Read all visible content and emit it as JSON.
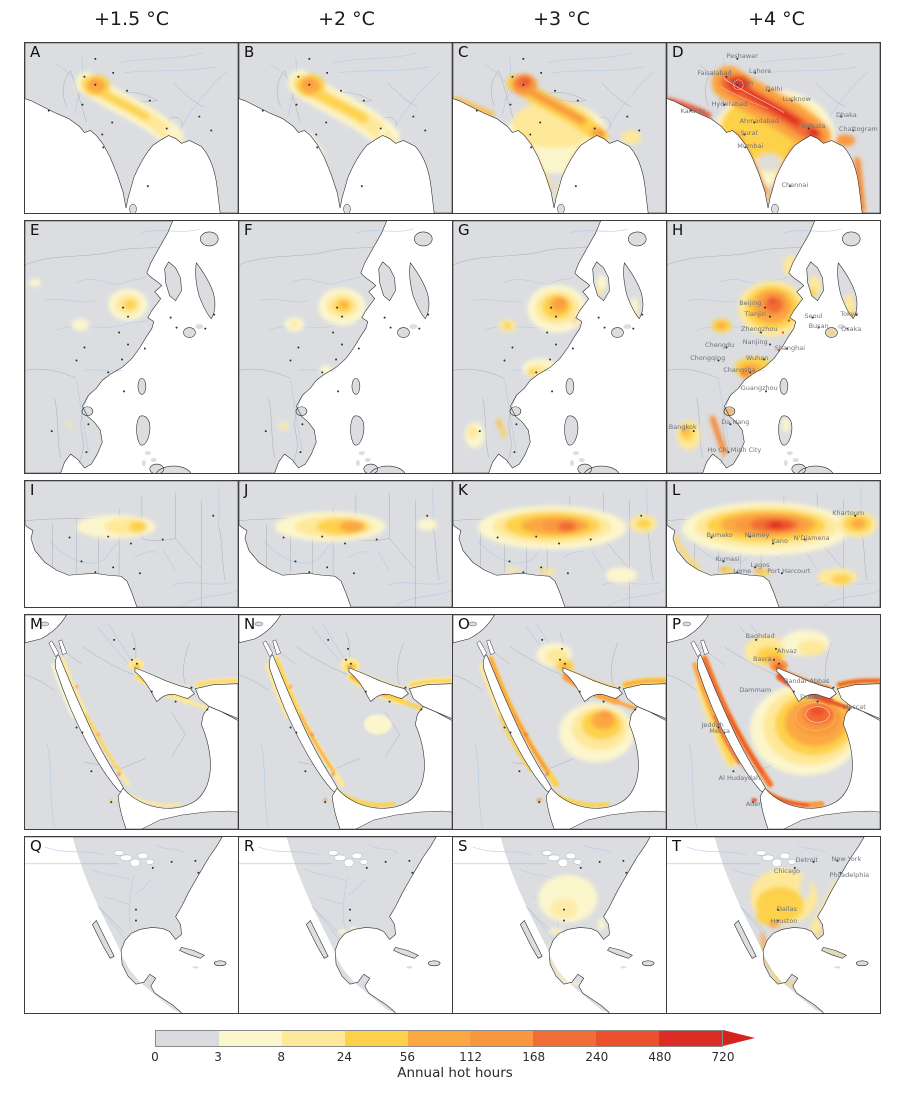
{
  "figure": {
    "column_titles": [
      "+1.5 °C",
      "+2 °C",
      "+3 °C",
      "+4 °C"
    ],
    "rows": [
      {
        "panels": [
          {
            "letter": "A"
          },
          {
            "letter": "B"
          },
          {
            "letter": "C"
          },
          {
            "letter": "D",
            "cities": [
              {
                "name": "Peshawar",
                "x": 35.3,
                "y": 7.6
              },
              {
                "name": "Faisalabad",
                "x": 22.3,
                "y": 17.5
              },
              {
                "name": "Lahore",
                "x": 43.7,
                "y": 16.4
              },
              {
                "name": "Multan",
                "x": 35.3,
                "y": 23.4
              },
              {
                "name": "Delhi",
                "x": 50.2,
                "y": 26.9
              },
              {
                "name": "Lucknow",
                "x": 60.9,
                "y": 32.7
              },
              {
                "name": "Karachi",
                "x": 12.1,
                "y": 39.8
              },
              {
                "name": "Hyderabad",
                "x": 29.3,
                "y": 35.7
              },
              {
                "name": "Ahmadabad",
                "x": 43.3,
                "y": 45.6
              },
              {
                "name": "Surat",
                "x": 38.6,
                "y": 53.2
              },
              {
                "name": "Mumbai",
                "x": 39.1,
                "y": 60.8
              },
              {
                "name": "Kolkata",
                "x": 68.8,
                "y": 49.1
              },
              {
                "name": "Dhaka",
                "x": 84.2,
                "y": 42.1
              },
              {
                "name": "Chattogram",
                "x": 89.8,
                "y": 50.3
              },
              {
                "name": "Chennai",
                "x": 60.0,
                "y": 83.6
              }
            ]
          }
        ]
      },
      {
        "panels": [
          {
            "letter": "E"
          },
          {
            "letter": "F"
          },
          {
            "letter": "G"
          },
          {
            "letter": "H",
            "cities": [
              {
                "name": "Beijing",
                "x": 39.1,
                "y": 32.4
              },
              {
                "name": "Tianjin",
                "x": 41.4,
                "y": 36.8
              },
              {
                "name": "Zhengzhou",
                "x": 43.3,
                "y": 42.7
              },
              {
                "name": "Chengdu",
                "x": 24.7,
                "y": 49.4
              },
              {
                "name": "Nanjing",
                "x": 41.4,
                "y": 48.2
              },
              {
                "name": "Shanghai",
                "x": 57.7,
                "y": 50.2
              },
              {
                "name": "Chongqing",
                "x": 19.1,
                "y": 54.5
              },
              {
                "name": "Wuhan",
                "x": 42.3,
                "y": 54.2
              },
              {
                "name": "Changsha",
                "x": 34.0,
                "y": 59.3
              },
              {
                "name": "Guangzhou",
                "x": 43.3,
                "y": 66.4
              },
              {
                "name": "Seoul",
                "x": 68.8,
                "y": 37.5
              },
              {
                "name": "Busan",
                "x": 71.2,
                "y": 41.5
              },
              {
                "name": "Tokyo",
                "x": 85.6,
                "y": 36.8
              },
              {
                "name": "Osaka",
                "x": 86.5,
                "y": 42.7
              },
              {
                "name": "Bangkok",
                "x": 7.4,
                "y": 81.8
              },
              {
                "name": "Da Nang",
                "x": 32.1,
                "y": 79.8
              },
              {
                "name": "Ho Chi Minh City",
                "x": 31.6,
                "y": 90.9
              }
            ]
          }
        ]
      },
      {
        "panels": [
          {
            "letter": "I"
          },
          {
            "letter": "J"
          },
          {
            "letter": "K"
          },
          {
            "letter": "L",
            "cities": [
              {
                "name": "Khartoum",
                "x": 85.1,
                "y": 25.2
              },
              {
                "name": "Bamako",
                "x": 24.7,
                "y": 42.5
              },
              {
                "name": "Niamey",
                "x": 42.3,
                "y": 42.5
              },
              {
                "name": "Kano",
                "x": 53.0,
                "y": 48.0
              },
              {
                "name": "N'Djamena",
                "x": 67.9,
                "y": 44.9
              },
              {
                "name": "Kumasi",
                "x": 28.4,
                "y": 62.2
              },
              {
                "name": "Lagos",
                "x": 43.7,
                "y": 66.9
              },
              {
                "name": "Lome",
                "x": 35.3,
                "y": 71.7
              },
              {
                "name": "Port Harcourt",
                "x": 57.2,
                "y": 71.7
              }
            ]
          }
        ]
      },
      {
        "panels": [
          {
            "letter": "M"
          },
          {
            "letter": "N"
          },
          {
            "letter": "O"
          },
          {
            "letter": "P",
            "cities": [
              {
                "name": "Baghdad",
                "x": 43.7,
                "y": 9.8
              },
              {
                "name": "Ahvaz",
                "x": 56.3,
                "y": 16.7
              },
              {
                "name": "Basra",
                "x": 44.7,
                "y": 20.5
              },
              {
                "name": "Bandar Abbas",
                "x": 65.6,
                "y": 30.7
              },
              {
                "name": "Dammam",
                "x": 41.4,
                "y": 34.9
              },
              {
                "name": "Dubai",
                "x": 67.0,
                "y": 38.1
              },
              {
                "name": "Muscat",
                "x": 87.9,
                "y": 42.8
              },
              {
                "name": "Jeddah",
                "x": 21.4,
                "y": 51.2
              },
              {
                "name": "Mecca",
                "x": 24.7,
                "y": 54.4
              },
              {
                "name": "Al Hudaydah",
                "x": 34.0,
                "y": 76.3
              },
              {
                "name": "Aden",
                "x": 40.9,
                "y": 88.4
              }
            ]
          }
        ]
      },
      {
        "panels": [
          {
            "letter": "Q"
          },
          {
            "letter": "R"
          },
          {
            "letter": "S"
          },
          {
            "letter": "T",
            "cities": [
              {
                "name": "Detroit",
                "x": 65.6,
                "y": 13.0
              },
              {
                "name": "Chicago",
                "x": 56.3,
                "y": 19.2
              },
              {
                "name": "New York",
                "x": 84.2,
                "y": 12.4
              },
              {
                "name": "Philadelphia",
                "x": 85.6,
                "y": 21.5
              },
              {
                "name": "Dallas",
                "x": 56.3,
                "y": 40.7
              },
              {
                "name": "Houston",
                "x": 54.9,
                "y": 48.0
              }
            ]
          }
        ]
      }
    ],
    "colorbar": {
      "label": "Annual hot hours",
      "ticks": [
        "0",
        "3",
        "8",
        "24",
        "56",
        "112",
        "168",
        "240",
        "480",
        "720"
      ],
      "colors": [
        "#d9dbdf",
        "#fcf6cd",
        "#fee899",
        "#fdd14a",
        "#fba843",
        "#f9993f",
        "#f26c36",
        "#ea512c",
        "#dc2c23"
      ],
      "arrow_color": "#d4251d"
    }
  }
}
